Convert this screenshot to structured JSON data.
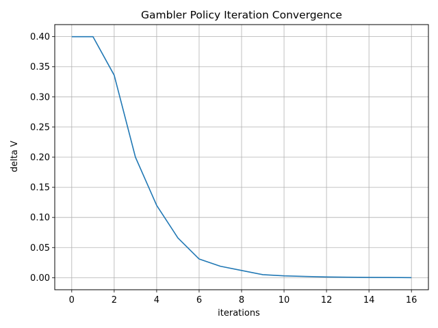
{
  "chart_data": {
    "type": "line",
    "title": "Gambler Policy Iteration Convergence",
    "xlabel": "iterations",
    "ylabel": "delta V",
    "xlim": [
      -0.8,
      16.8
    ],
    "ylim": [
      -0.02,
      0.42
    ],
    "xticks": [
      0,
      2,
      4,
      6,
      8,
      10,
      12,
      14,
      16
    ],
    "xtick_labels": [
      "0",
      "2",
      "4",
      "6",
      "8",
      "10",
      "12",
      "14",
      "16"
    ],
    "yticks": [
      0.0,
      0.05,
      0.1,
      0.15,
      0.2,
      0.25,
      0.3,
      0.35,
      0.4
    ],
    "ytick_labels": [
      "0.00",
      "0.05",
      "0.10",
      "0.15",
      "0.20",
      "0.25",
      "0.30",
      "0.35",
      "0.40"
    ],
    "grid": true,
    "series": [
      {
        "color": "#1f77b4",
        "x": [
          0,
          1,
          2,
          3,
          4,
          5,
          6,
          7,
          8,
          9,
          10,
          11,
          12,
          13,
          14,
          15,
          16
        ],
        "y": [
          0.4,
          0.4,
          0.336,
          0.2,
          0.12,
          0.066,
          0.031,
          0.019,
          0.012,
          0.005,
          0.003,
          0.002,
          0.0012,
          0.0008,
          0.0005,
          0.0003,
          0.0001
        ]
      }
    ]
  }
}
